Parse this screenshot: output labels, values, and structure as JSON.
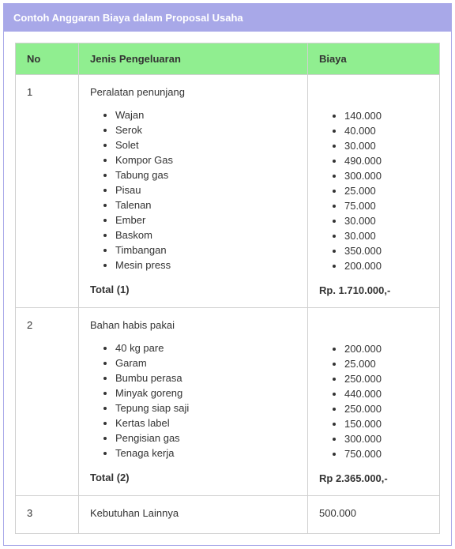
{
  "title": "Contoh Anggaran Biaya dalam Proposal Usaha",
  "headers": {
    "no": "No",
    "jenis": "Jenis Pengeluaran",
    "biaya": "Biaya"
  },
  "rows": [
    {
      "no": "1",
      "category": "Peralatan penunjang",
      "items": [
        "Wajan",
        "Serok",
        "Solet",
        "Kompor Gas",
        "Tabung gas",
        "Pisau",
        "Talenan",
        "Ember",
        "Baskom",
        "Timbangan",
        "Mesin press"
      ],
      "costs": [
        "140.000",
        "40.000",
        "30.000",
        "490.000",
        "300.000",
        "25.000",
        "75.000",
        "30.000",
        "30.000",
        "350.000",
        "200.000"
      ],
      "total_label": "Total (1)",
      "total_cost": "Rp. 1.710.000,-"
    },
    {
      "no": "2",
      "category": "Bahan habis pakai",
      "items": [
        "40 kg pare",
        "Garam",
        "Bumbu perasa",
        "Minyak goreng",
        "Tepung siap saji",
        "Kertas label",
        "Pengisian gas",
        "Tenaga kerja"
      ],
      "costs": [
        "200.000",
        "25.000",
        "250.000",
        "440.000",
        "250.000",
        "150.000",
        "300.000",
        "750.000"
      ],
      "total_label": "Total (2)",
      "total_cost": "Rp 2.365.000,-"
    },
    {
      "no": "3",
      "category": "Kebutuhan Lainnya",
      "items": [],
      "costs": [],
      "total_label": null,
      "total_cost": null,
      "simple_cost": "500.000"
    }
  ],
  "colors": {
    "header_bg": "#a8a8e8",
    "th_bg": "#90ee90",
    "border": "#d0d0d0",
    "text": "#333333"
  }
}
